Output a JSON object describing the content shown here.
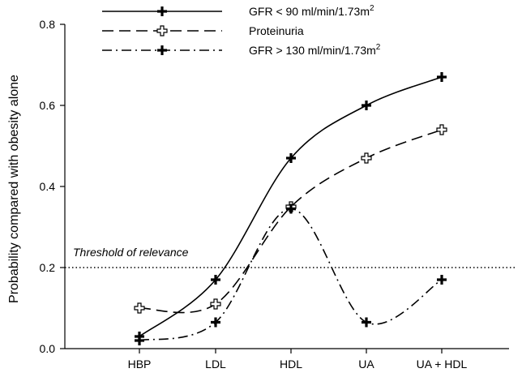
{
  "chart_data": {
    "type": "line",
    "title": "",
    "xlabel": "",
    "ylabel": "Probability compared with obesity alone",
    "categories": [
      "HBP",
      "LDL",
      "HDL",
      "UA",
      "UA + HDL"
    ],
    "ylim": [
      0,
      0.8
    ],
    "yticks": [
      0.0,
      0.2,
      0.4,
      0.6,
      0.8
    ],
    "ytick_labels": [
      "0.0",
      "0.2",
      "0.4",
      "0.6",
      "0.8"
    ],
    "series": [
      {
        "name": "GFR < 90 ml/min/1.73m",
        "sup": "2",
        "style": "solid",
        "marker": "filled-cross",
        "values": [
          0.03,
          0.17,
          0.47,
          0.6,
          0.67
        ]
      },
      {
        "name": "Proteinuria",
        "sup": "",
        "style": "dashed",
        "marker": "open-cross",
        "values": [
          0.1,
          0.11,
          0.35,
          0.47,
          0.54
        ]
      },
      {
        "name": "GFR > 130 ml/min/1.73m",
        "sup": "2",
        "style": "dash-dot",
        "marker": "filled-cross",
        "values": [
          0.02,
          0.065,
          0.345,
          0.065,
          0.17
        ]
      }
    ],
    "threshold": {
      "value": 0.2,
      "label": "Threshold of relevance"
    },
    "grid": false,
    "legend_position": "top"
  }
}
